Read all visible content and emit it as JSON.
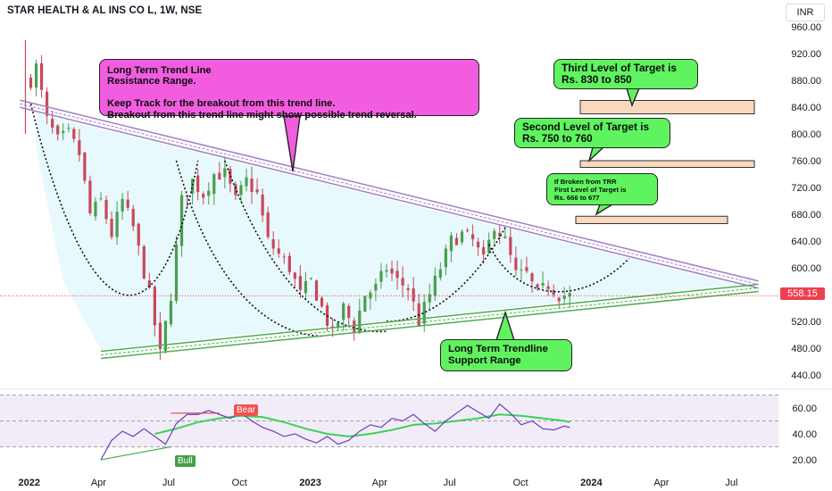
{
  "header": {
    "symbol_title": "STAR HEALTH & AL INS CO L, 1W, NSE",
    "currency": "INR"
  },
  "colors": {
    "up": "#26a69a",
    "up_candle": "#4a9e4f",
    "down_candle": "#c9475a",
    "resistance": "#a27fc8",
    "support": "#4caf50",
    "rsi_line": "#6a3fb5",
    "rsi_ma": "#39d353",
    "callout_pink": "#f25de0",
    "callout_green": "#5ff45f",
    "target_zone": "#f8d9bf",
    "current_price": "#ef3f4f"
  },
  "annotations": {
    "resistance_note": "Long Term Trend Line\nResistance Range.\n\nKeep Track for the breakout from this trend line.\nBreakout from this trend line might show possible trend reversal.",
    "support_note": "Long Term Trendline\nSupport Range",
    "target3_note": "Third Level of Target is\nRs. 830 to 850",
    "target2_note": "Second Level of Target is\nRs. 750 to 760",
    "target1_note": "If Broken from TRR\nFirst Level of Target is\nRs. 666 to 677",
    "rsi_bear": "Bear",
    "rsi_bull": "Bull"
  },
  "current_price_label": "558.15",
  "chart_data": [
    {
      "type": "candlestick",
      "x_axis_labels": [
        "2022",
        "Apr",
        "Jul",
        "Oct",
        "2023",
        "Apr",
        "Jul",
        "Oct",
        "2024",
        "Apr",
        "Jul"
      ],
      "y_ticks": [
        "960.00",
        "920.00",
        "880.00",
        "840.00",
        "800.00",
        "760.00",
        "720.00",
        "680.00",
        "640.00",
        "600.00",
        "560.00",
        "520.00",
        "480.00",
        "440.00"
      ],
      "ylim": [
        430,
        970
      ],
      "current_price": 558.15,
      "close_path": [
        [
          "2022-01-03",
          880
        ],
        [
          "2022-01-10",
          900
        ],
        [
          "2022-01-24",
          820
        ],
        [
          "2022-02-07",
          790
        ],
        [
          "2022-02-21",
          800
        ],
        [
          "2022-03-07",
          770
        ],
        [
          "2022-03-21",
          680
        ],
        [
          "2022-04-04",
          700
        ],
        [
          "2022-04-18",
          650
        ],
        [
          "2022-05-02",
          700
        ],
        [
          "2022-05-16",
          660
        ],
        [
          "2022-06-06",
          560
        ],
        [
          "2022-06-20",
          470
        ],
        [
          "2022-07-04",
          560
        ],
        [
          "2022-07-18",
          700
        ],
        [
          "2022-08-01",
          730
        ],
        [
          "2022-08-15",
          710
        ],
        [
          "2022-08-29",
          740
        ],
        [
          "2022-09-12",
          740
        ],
        [
          "2022-09-26",
          700
        ],
        [
          "2022-10-10",
          730
        ],
        [
          "2022-10-24",
          710
        ],
        [
          "2022-11-07",
          640
        ],
        [
          "2022-11-21",
          620
        ],
        [
          "2022-12-05",
          600
        ],
        [
          "2022-12-19",
          560
        ],
        [
          "2023-01-02",
          580
        ],
        [
          "2023-01-16",
          540
        ],
        [
          "2023-01-30",
          500
        ],
        [
          "2023-02-13",
          540
        ],
        [
          "2023-02-27",
          510
        ],
        [
          "2023-03-13",
          560
        ],
        [
          "2023-03-27",
          570
        ],
        [
          "2023-04-10",
          600
        ],
        [
          "2023-04-24",
          580
        ],
        [
          "2023-05-08",
          570
        ],
        [
          "2023-05-22",
          520
        ],
        [
          "2023-06-05",
          560
        ],
        [
          "2023-06-19",
          600
        ],
        [
          "2023-07-03",
          640
        ],
        [
          "2023-07-17",
          650
        ],
        [
          "2023-07-31",
          640
        ],
        [
          "2023-08-14",
          610
        ],
        [
          "2023-08-28",
          665
        ],
        [
          "2023-09-11",
          640
        ],
        [
          "2023-09-25",
          590
        ],
        [
          "2023-10-09",
          590
        ],
        [
          "2023-10-23",
          560
        ],
        [
          "2023-11-06",
          575
        ],
        [
          "2023-11-20",
          560
        ],
        [
          "2023-12-04",
          558
        ]
      ],
      "resistance_trendline": [
        [
          "2021-12-20",
          845
        ],
        [
          "2024-08-05",
          575
        ]
      ],
      "support_trendline": [
        [
          "2022-04-04",
          470
        ],
        [
          "2024-08-05",
          570
        ]
      ],
      "target_zones": [
        {
          "label": "Third Level of Target",
          "low": 830,
          "high": 850
        },
        {
          "label": "Second Level of Target",
          "low": 750,
          "high": 760
        },
        {
          "label": "First Level of Target",
          "low": 666,
          "high": 677
        }
      ]
    },
    {
      "type": "line",
      "name": "RSI",
      "y_ticks": [
        "60.00",
        "40.00",
        "20.00"
      ],
      "ylim": [
        15,
        70
      ],
      "bands": [
        30,
        50,
        70
      ],
      "rsi": [
        [
          "2022-04-04",
          20
        ],
        [
          "2022-04-18",
          35
        ],
        [
          "2022-05-02",
          42
        ],
        [
          "2022-05-16",
          38
        ],
        [
          "2022-05-30",
          44
        ],
        [
          "2022-06-13",
          38
        ],
        [
          "2022-06-27",
          32
        ],
        [
          "2022-07-11",
          48
        ],
        [
          "2022-07-25",
          55
        ],
        [
          "2022-08-08",
          55
        ],
        [
          "2022-08-22",
          58
        ],
        [
          "2022-09-05",
          55
        ],
        [
          "2022-09-19",
          52
        ],
        [
          "2022-10-03",
          56
        ],
        [
          "2022-10-17",
          50
        ],
        [
          "2022-10-31",
          45
        ],
        [
          "2022-11-14",
          42
        ],
        [
          "2022-11-28",
          38
        ],
        [
          "2022-12-12",
          40
        ],
        [
          "2022-12-26",
          36
        ],
        [
          "2023-01-09",
          33
        ],
        [
          "2023-01-23",
          38
        ],
        [
          "2023-02-06",
          32
        ],
        [
          "2023-02-20",
          35
        ],
        [
          "2023-03-06",
          42
        ],
        [
          "2023-03-20",
          47
        ],
        [
          "2023-04-03",
          45
        ],
        [
          "2023-04-17",
          52
        ],
        [
          "2023-05-01",
          50
        ],
        [
          "2023-05-15",
          55
        ],
        [
          "2023-05-29",
          48
        ],
        [
          "2023-06-12",
          42
        ],
        [
          "2023-06-26",
          50
        ],
        [
          "2023-07-10",
          56
        ],
        [
          "2023-07-24",
          62
        ],
        [
          "2023-08-07",
          57
        ],
        [
          "2023-08-21",
          52
        ],
        [
          "2023-09-04",
          63
        ],
        [
          "2023-09-18",
          56
        ],
        [
          "2023-10-02",
          47
        ],
        [
          "2023-10-16",
          50
        ],
        [
          "2023-10-30",
          44
        ],
        [
          "2023-11-13",
          43
        ],
        [
          "2023-11-27",
          46
        ],
        [
          "2023-12-04",
          45
        ]
      ],
      "rsi_ma": [
        [
          "2022-06-13",
          40
        ],
        [
          "2022-07-11",
          44
        ],
        [
          "2022-08-08",
          49
        ],
        [
          "2022-09-05",
          52
        ],
        [
          "2022-10-03",
          54
        ],
        [
          "2022-10-31",
          53
        ],
        [
          "2022-11-28",
          49
        ],
        [
          "2022-12-26",
          44
        ],
        [
          "2023-01-23",
          40
        ],
        [
          "2023-02-20",
          38
        ],
        [
          "2023-03-20",
          40
        ],
        [
          "2023-04-17",
          43
        ],
        [
          "2023-05-15",
          47
        ],
        [
          "2023-06-12",
          48
        ],
        [
          "2023-07-10",
          50
        ],
        [
          "2023-08-07",
          52
        ],
        [
          "2023-09-04",
          55
        ],
        [
          "2023-10-02",
          54
        ],
        [
          "2023-10-30",
          52
        ],
        [
          "2023-11-27",
          50
        ],
        [
          "2023-12-04",
          49
        ]
      ],
      "divergence_line": [
        [
          "2022-04-04",
          20
        ],
        [
          "2022-07-04",
          30
        ]
      ]
    }
  ]
}
